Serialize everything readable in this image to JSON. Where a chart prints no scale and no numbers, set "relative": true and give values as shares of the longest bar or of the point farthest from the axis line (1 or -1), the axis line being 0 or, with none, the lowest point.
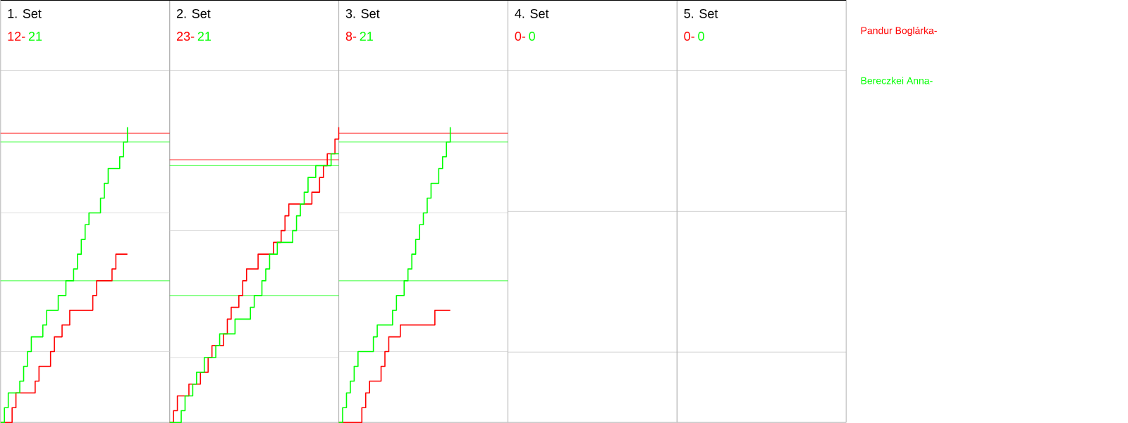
{
  "chart_data": [
    {
      "type": "step",
      "title": "1. Set",
      "annotations": [
        "12-",
        "21"
      ],
      "relative": true,
      "categories": [
        null,
        null,
        null,
        null,
        null,
        null,
        null,
        null,
        null,
        null,
        null,
        null,
        null,
        null,
        null,
        null,
        null,
        null,
        null,
        null,
        null,
        null,
        null,
        null,
        null,
        null,
        null,
        null,
        null,
        null,
        null,
        null,
        null,
        null
      ],
      "ref_lines": [
        {
          "axis": "y",
          "value": 0.24,
          "color": "#d3d3d3"
        },
        {
          "axis": "y",
          "value": 0.71,
          "color": "#d3d3d3"
        },
        {
          "axis": "y",
          "value": 0.98,
          "color": "#ff0000"
        },
        {
          "axis": "y",
          "value": 0.95,
          "color": "#00ff00"
        },
        {
          "axis": "y",
          "value": 0.48,
          "color": "#00ff00"
        }
      ],
      "series": [
        {
          "name": "Pandur Boglárka-",
          "color": "#ff0000",
          "values": [
            0,
            0,
            0,
            0.05,
            0.1,
            0.1,
            0.1,
            0.1,
            0.1,
            0.14,
            0.19,
            0.19,
            0.19,
            0.24,
            0.29,
            0.29,
            0.33,
            0.33,
            0.38,
            0.38,
            0.38,
            0.38,
            0.38,
            0.38,
            0.43,
            0.48,
            0.48,
            0.48,
            0.48,
            0.52,
            0.57,
            0.57,
            0.57,
            0.57
          ]
        },
        {
          "name": "Bereczkei Anna-",
          "color": "#00ff00",
          "values": [
            0,
            0.05,
            0.1,
            0.1,
            0.1,
            0.14,
            0.19,
            0.24,
            0.29,
            0.29,
            0.29,
            0.33,
            0.38,
            0.38,
            0.38,
            0.43,
            0.43,
            0.48,
            0.48,
            0.52,
            0.57,
            0.62,
            0.67,
            0.71,
            0.71,
            0.71,
            0.76,
            0.81,
            0.86,
            0.86,
            0.86,
            0.9,
            0.95,
            1
          ]
        }
      ]
    },
    {
      "type": "step",
      "title": "2. Set",
      "annotations": [
        "23-",
        "21"
      ],
      "relative": true,
      "categories": [
        null,
        null,
        null,
        null,
        null,
        null,
        null,
        null,
        null,
        null,
        null,
        null,
        null,
        null,
        null,
        null,
        null,
        null,
        null,
        null,
        null,
        null,
        null,
        null,
        null,
        null,
        null,
        null,
        null,
        null,
        null,
        null,
        null,
        null,
        null,
        null,
        null,
        null,
        null,
        null,
        null,
        null,
        null,
        null,
        null
      ],
      "ref_lines": [
        {
          "axis": "y",
          "value": 0.22,
          "color": "#d3d3d3"
        },
        {
          "axis": "y",
          "value": 0.65,
          "color": "#d3d3d3"
        },
        {
          "axis": "y",
          "value": 0.89,
          "color": "#ff0000"
        },
        {
          "axis": "y",
          "value": 0.87,
          "color": "#00ff00"
        },
        {
          "axis": "y",
          "value": 0.43,
          "color": "#00ff00"
        }
      ],
      "series": [
        {
          "color": "#ff0000",
          "values": [
            0,
            0.04,
            0.09,
            0.09,
            0.09,
            0.13,
            0.13,
            0.13,
            0.17,
            0.17,
            0.22,
            0.26,
            0.26,
            0.26,
            0.3,
            0.35,
            0.39,
            0.39,
            0.43,
            0.48,
            0.52,
            0.52,
            0.52,
            0.57,
            0.57,
            0.57,
            0.57,
            0.61,
            0.61,
            0.65,
            0.7,
            0.74,
            0.74,
            0.74,
            0.74,
            0.74,
            0.74,
            0.78,
            0.78,
            0.83,
            0.87,
            0.91,
            0.91,
            0.96,
            1
          ]
        },
        {
          "color": "#00ff00",
          "values": [
            0,
            0,
            0,
            0.04,
            0.09,
            0.09,
            0.13,
            0.17,
            0.17,
            0.22,
            0.22,
            0.22,
            0.26,
            0.3,
            0.3,
            0.3,
            0.3,
            0.35,
            0.35,
            0.35,
            0.35,
            0.39,
            0.43,
            0.43,
            0.48,
            0.52,
            0.57,
            0.57,
            0.61,
            0.61,
            0.61,
            0.61,
            0.65,
            0.7,
            0.74,
            0.78,
            0.83,
            0.83,
            0.87,
            0.87,
            0.87,
            0.87,
            0.91,
            0.91,
            0.91
          ]
        }
      ]
    },
    {
      "type": "step",
      "title": "3. Set",
      "annotations": [
        "8-",
        "21"
      ],
      "relative": true,
      "categories": [
        null,
        null,
        null,
        null,
        null,
        null,
        null,
        null,
        null,
        null,
        null,
        null,
        null,
        null,
        null,
        null,
        null,
        null,
        null,
        null,
        null,
        null,
        null,
        null,
        null,
        null,
        null,
        null,
        null,
        null
      ],
      "ref_lines": [
        {
          "axis": "y",
          "value": 0.24,
          "color": "#d3d3d3"
        },
        {
          "axis": "y",
          "value": 0.71,
          "color": "#d3d3d3"
        },
        {
          "axis": "y",
          "value": 0.98,
          "color": "#ff0000"
        },
        {
          "axis": "y",
          "value": 0.95,
          "color": "#00ff00"
        },
        {
          "axis": "y",
          "value": 0.48,
          "color": "#00ff00"
        }
      ],
      "series": [
        {
          "color": "#ff0000",
          "values": [
            0,
            0,
            0,
            0,
            0,
            0,
            0.05,
            0.1,
            0.14,
            0.14,
            0.14,
            0.19,
            0.24,
            0.29,
            0.29,
            0.29,
            0.33,
            0.33,
            0.33,
            0.33,
            0.33,
            0.33,
            0.33,
            0.33,
            0.33,
            0.38,
            0.38,
            0.38,
            0.38,
            0.38
          ]
        },
        {
          "color": "#00ff00",
          "values": [
            0,
            0.05,
            0.1,
            0.14,
            0.19,
            0.24,
            0.24,
            0.24,
            0.24,
            0.29,
            0.33,
            0.33,
            0.33,
            0.33,
            0.38,
            0.43,
            0.43,
            0.48,
            0.52,
            0.57,
            0.62,
            0.67,
            0.71,
            0.76,
            0.81,
            0.81,
            0.86,
            0.9,
            0.95,
            1
          ]
        }
      ]
    },
    {
      "type": "other",
      "title": "4. Set",
      "annotations": [
        "0-",
        "0"
      ]
    },
    {
      "type": "other",
      "title": "5. Set",
      "annotations": [
        "0-",
        "0"
      ]
    }
  ]
}
